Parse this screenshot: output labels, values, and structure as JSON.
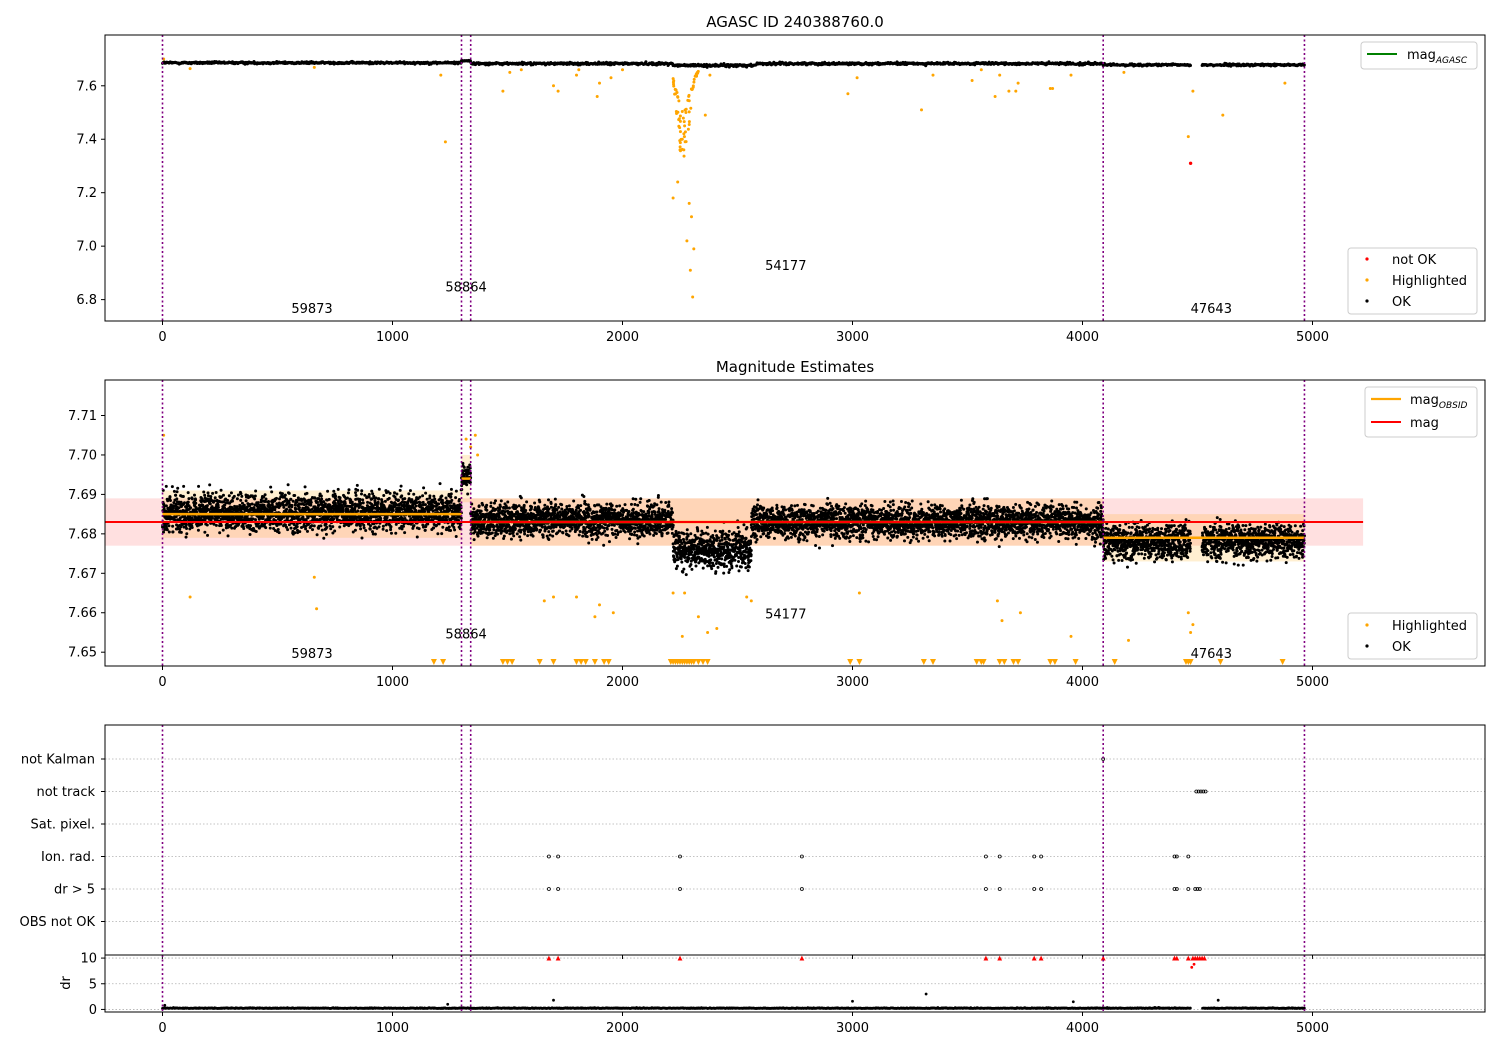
{
  "figure": {
    "obsid_labels": [
      "59873",
      "58864",
      "54177",
      "47643"
    ],
    "obsid_boundaries": [
      0,
      1300,
      1340,
      4090,
      4965
    ]
  },
  "colors": {
    "ok": "#000000",
    "highlighted": "#ffa500",
    "not_ok": "#ff0000",
    "mag_agasc": "#008000",
    "mag_obsid": "#ffa500",
    "mag": "#ff0000",
    "band_fill": "#ff0000",
    "divider": "#800080"
  },
  "chart_data": [
    {
      "type": "scatter",
      "title": "AGASC ID 240388760.0",
      "xlabel": "",
      "ylabel": "",
      "xlim": [
        -250,
        5750
      ],
      "ylim": [
        6.72,
        7.79
      ],
      "xticks": [
        0,
        1000,
        2000,
        3000,
        4000,
        5000
      ],
      "yticks": [
        6.8,
        7.0,
        7.2,
        7.4,
        7.6
      ],
      "grid": false,
      "legend_top": {
        "placement": "top-right",
        "entries": [
          {
            "name": "mag",
            "subscript": "AGASC",
            "color": "#008000",
            "kind": "line"
          }
        ]
      },
      "legend_bottom": {
        "placement": "lower-right",
        "entries": [
          {
            "name": "not OK",
            "color": "#ff0000",
            "kind": "marker"
          },
          {
            "name": "Highlighted",
            "color": "#ffa500",
            "kind": "marker"
          },
          {
            "name": "OK",
            "color": "#000000",
            "kind": "marker"
          }
        ]
      },
      "obsid_label_positions": [
        {
          "x": 650,
          "y": 6.75
        },
        {
          "x": 1320,
          "y": 6.83
        },
        {
          "x": 2710,
          "y": 6.91
        },
        {
          "x": 4560,
          "y": 6.75
        }
      ],
      "series": [
        {
          "name": "OK",
          "description": "dense black band",
          "segments": [
            {
              "x": [
                0,
                1300
              ],
              "y_center": 7.686,
              "y_spread": 0.008
            },
            {
              "x": [
                1300,
                1340
              ],
              "y_center": 7.694,
              "y_spread": 0.006
            },
            {
              "x": [
                1340,
                2220
              ],
              "y_center": 7.683,
              "y_spread": 0.009
            },
            {
              "x": [
                2220,
                2580
              ],
              "y_center": 7.676,
              "y_spread": 0.01
            },
            {
              "x": [
                2580,
                4090
              ],
              "y_center": 7.683,
              "y_spread": 0.009
            },
            {
              "x": [
                4090,
                4470
              ],
              "y_center": 7.678,
              "y_spread": 0.008
            },
            {
              "x": [
                4520,
                4965
              ],
              "y_center": 7.678,
              "y_spread": 0.008
            }
          ]
        },
        {
          "name": "Highlighted",
          "points": [
            [
              5,
              7.7
            ],
            [
              120,
              7.664
            ],
            [
              660,
              7.669
            ],
            [
              1230,
              7.39
            ],
            [
              1210,
              7.64
            ],
            [
              1510,
              7.65
            ],
            [
              1480,
              7.58
            ],
            [
              1560,
              7.66
            ],
            [
              1700,
              7.6
            ],
            [
              1720,
              7.58
            ],
            [
              1800,
              7.64
            ],
            [
              1810,
              7.66
            ],
            [
              1890,
              7.56
            ],
            [
              1900,
              7.61
            ],
            [
              1950,
              7.63
            ],
            [
              2000,
              7.66
            ],
            [
              2220,
              7.18
            ],
            [
              2240,
              7.24
            ],
            [
              2250,
              7.36
            ],
            [
              2260,
              7.4
            ],
            [
              2270,
              7.45
            ],
            [
              2280,
              7.02
            ],
            [
              2290,
              7.16
            ],
            [
              2295,
              6.91
            ],
            [
              2300,
              7.11
            ],
            [
              2305,
              6.81
            ],
            [
              2310,
              6.99
            ],
            [
              2360,
              7.49
            ],
            [
              2380,
              7.64
            ],
            [
              2980,
              7.57
            ],
            [
              3020,
              7.63
            ],
            [
              3300,
              7.51
            ],
            [
              3350,
              7.64
            ],
            [
              3520,
              7.62
            ],
            [
              3560,
              7.66
            ],
            [
              3620,
              7.56
            ],
            [
              3640,
              7.64
            ],
            [
              3680,
              7.58
            ],
            [
              3710,
              7.58
            ],
            [
              3720,
              7.61
            ],
            [
              3860,
              7.59
            ],
            [
              3870,
              7.59
            ],
            [
              3950,
              7.64
            ],
            [
              4180,
              7.65
            ],
            [
              4460,
              7.41
            ],
            [
              4480,
              7.58
            ],
            [
              4610,
              7.49
            ],
            [
              4880,
              7.61
            ]
          ]
        },
        {
          "name": "not OK",
          "points": [
            [
              4470,
              7.31
            ]
          ]
        }
      ]
    },
    {
      "type": "scatter",
      "title": "Magnitude Estimates",
      "xlabel": "",
      "ylabel": "",
      "xlim": [
        -250,
        5750
      ],
      "ylim": [
        7.6465,
        7.719
      ],
      "xticks": [
        0,
        1000,
        2000,
        3000,
        4000,
        5000
      ],
      "yticks": [
        7.65,
        7.66,
        7.67,
        7.68,
        7.69,
        7.7,
        7.71
      ],
      "grid": false,
      "legend_top": {
        "placement": "top-right",
        "entries": [
          {
            "name": "mag",
            "subscript": "OBSID",
            "color": "#ffa500",
            "kind": "line"
          },
          {
            "name": "mag",
            "subscript": "",
            "color": "#ff0000",
            "kind": "line"
          }
        ]
      },
      "legend_bottom": {
        "placement": "lower-right",
        "entries": [
          {
            "name": "Highlighted",
            "color": "#ffa500",
            "kind": "marker"
          },
          {
            "name": "OK",
            "color": "#000000",
            "kind": "marker"
          }
        ]
      },
      "mag": 7.683,
      "mag_band": [
        7.677,
        7.689
      ],
      "mag_xrange": [
        -250,
        5220
      ],
      "mag_obsid": [
        {
          "x": [
            0,
            1300
          ],
          "y": 7.685
        },
        {
          "x": [
            1300,
            1340
          ],
          "y": 7.694
        },
        {
          "x": [
            1340,
            4090
          ],
          "y": 7.683
        },
        {
          "x": [
            4090,
            4965
          ],
          "y": 7.679
        }
      ],
      "obsid_label_positions": [
        {
          "x": 650,
          "y": 7.6485
        },
        {
          "x": 1320,
          "y": 7.6535
        },
        {
          "x": 2710,
          "y": 7.6585
        },
        {
          "x": 4560,
          "y": 7.6485
        }
      ],
      "series": [
        {
          "name": "OK",
          "description": "dense black scatter",
          "segments": [
            {
              "x": [
                0,
                1300
              ],
              "y_center": 7.6855,
              "y_spread": 0.009
            },
            {
              "x": [
                1300,
                1340
              ],
              "y_center": 7.6945,
              "y_spread": 0.006
            },
            {
              "x": [
                1340,
                2220
              ],
              "y_center": 7.6835,
              "y_spread": 0.008
            },
            {
              "x": [
                2220,
                2560
              ],
              "y_center": 7.676,
              "y_spread": 0.009
            },
            {
              "x": [
                2560,
                4090
              ],
              "y_center": 7.683,
              "y_spread": 0.008
            },
            {
              "x": [
                4090,
                4470
              ],
              "y_center": 7.678,
              "y_spread": 0.008
            },
            {
              "x": [
                4520,
                4965
              ],
              "y_center": 7.678,
              "y_spread": 0.008
            }
          ]
        },
        {
          "name": "Highlighted",
          "points": [
            [
              5,
              7.705
            ],
            [
              120,
              7.664
            ],
            [
              660,
              7.669
            ],
            [
              670,
              7.661
            ],
            [
              1320,
              7.704
            ],
            [
              1340,
              7.702
            ],
            [
              1360,
              7.705
            ],
            [
              1370,
              7.7
            ],
            [
              1660,
              7.663
            ],
            [
              1700,
              7.664
            ],
            [
              1800,
              7.664
            ],
            [
              1880,
              7.659
            ],
            [
              1900,
              7.662
            ],
            [
              1960,
              7.66
            ],
            [
              2220,
              7.665
            ],
            [
              2260,
              7.654
            ],
            [
              2270,
              7.665
            ],
            [
              2330,
              7.659
            ],
            [
              2370,
              7.655
            ],
            [
              2410,
              7.656
            ],
            [
              2540,
              7.664
            ],
            [
              2560,
              7.663
            ],
            [
              3030,
              7.665
            ],
            [
              3630,
              7.663
            ],
            [
              3650,
              7.658
            ],
            [
              3730,
              7.66
            ],
            [
              3950,
              7.654
            ],
            [
              4200,
              7.653
            ],
            [
              4460,
              7.66
            ],
            [
              4480,
              7.657
            ],
            [
              4470,
              7.655
            ]
          ]
        },
        {
          "name": "Highlighted (below axis)",
          "marker": "triangle-down",
          "y": 7.6475,
          "x": [
            1180,
            1220,
            1480,
            1500,
            1520,
            1640,
            1700,
            1800,
            1820,
            1840,
            1880,
            1920,
            1940,
            2210,
            2220,
            2230,
            2240,
            2250,
            2260,
            2270,
            2280,
            2290,
            2300,
            2310,
            2330,
            2350,
            2370,
            2990,
            3030,
            3310,
            3350,
            3540,
            3560,
            3570,
            3640,
            3660,
            3700,
            3720,
            3860,
            3880,
            3970,
            4140,
            4450,
            4460,
            4470,
            4600,
            4870
          ]
        }
      ]
    },
    {
      "type": "scatter",
      "title": "",
      "xlabel": "",
      "ylabel": "",
      "xlim": [
        -250,
        5750
      ],
      "ylim": [
        -0.5,
        100
      ],
      "xticks": [
        0,
        1000,
        2000,
        3000,
        4000,
        5000
      ],
      "categories": [
        "not Kalman",
        "not track",
        "Sat. pixel.",
        "Ion. rad.",
        "dr > 5",
        "OBS not OK"
      ],
      "flags": [
        {
          "category": "not Kalman",
          "x": [
            4090
          ]
        },
        {
          "category": "not track",
          "x": [
            4495,
            4505,
            4515,
            4525,
            4535
          ]
        },
        {
          "category": "Sat. pixel.",
          "x": []
        },
        {
          "category": "Ion. rad.",
          "x": [
            1680,
            1720,
            2250,
            2780,
            3580,
            3640,
            3790,
            3820,
            4400,
            4410,
            4460
          ]
        },
        {
          "category": "dr > 5",
          "x": [
            1680,
            1720,
            2250,
            2780,
            3580,
            3640,
            3790,
            3820,
            4400,
            4410,
            4460,
            4490,
            4500,
            4510
          ]
        },
        {
          "category": "OBS not OK",
          "x": []
        }
      ]
    },
    {
      "type": "scatter",
      "title": "",
      "xlabel": "",
      "ylabel": "dr",
      "xlim": [
        -250,
        5750
      ],
      "ylim": [
        -0.5,
        10.6
      ],
      "xticks": [
        0,
        1000,
        2000,
        3000,
        4000,
        5000
      ],
      "xticklabels": [
        "0",
        "1000",
        "2000",
        "3000",
        "4000",
        "5000"
      ],
      "yticks": [
        0,
        5,
        10
      ],
      "series": [
        {
          "name": "dr",
          "description": "black points near zero",
          "y_center": 0.2,
          "y_spread": 0.3,
          "x_range": [
            0,
            4965
          ],
          "outliers": [
            [
              1240,
              1.0
            ],
            [
              1700,
              1.8
            ],
            [
              3000,
              1.6
            ],
            [
              3320,
              3.0
            ],
            [
              3960,
              1.5
            ],
            [
              4590,
              1.8
            ],
            [
              10,
              0.8
            ]
          ]
        },
        {
          "name": "dr clipped",
          "marker": "triangle-up",
          "color": "#ff0000",
          "y": 10,
          "x": [
            1680,
            1720,
            2250,
            2780,
            3580,
            3640,
            3790,
            3820,
            4090,
            4400,
            4410,
            4460,
            4480,
            4490,
            4500,
            4510,
            4520,
            4530
          ]
        },
        {
          "name": "dr high",
          "color": "#ff0000",
          "points": [
            [
              4475,
              8.2
            ],
            [
              4485,
              8.8
            ]
          ]
        }
      ]
    }
  ]
}
